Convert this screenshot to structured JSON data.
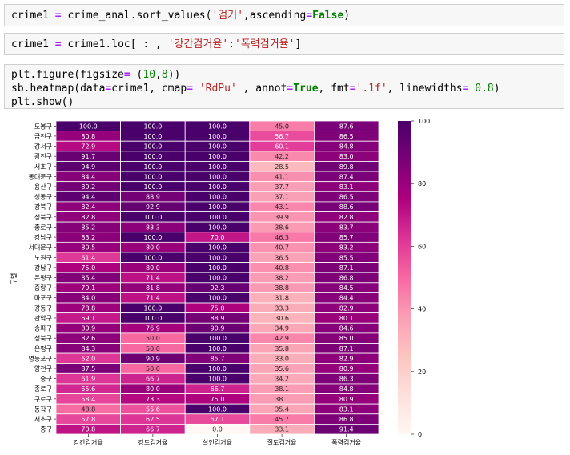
{
  "cells": [
    {
      "lines": [
        [
          [
            "crime1 ",
            ""
          ],
          [
            "=",
            ""
          ],
          [
            " crime_anal.sort_values(",
            ""
          ],
          [
            "'검거'",
            "str"
          ],
          [
            ",ascending",
            ""
          ],
          [
            "=",
            ""
          ],
          [
            "False",
            "kw"
          ],
          [
            ")",
            ""
          ]
        ]
      ]
    },
    {
      "lines": [
        [
          [
            "crime1 ",
            ""
          ],
          [
            "=",
            ""
          ],
          [
            " crime1.loc[ : , ",
            ""
          ],
          [
            "'강간검거율'",
            "str"
          ],
          [
            ":",
            ""
          ],
          [
            "'폭력검거율'",
            "str"
          ],
          [
            "]",
            ""
          ]
        ]
      ]
    },
    {
      "lines": [
        [
          [
            "plt.figure(figsize",
            ""
          ],
          [
            "=",
            ""
          ],
          [
            " (",
            ""
          ],
          [
            "10",
            "num"
          ],
          [
            ",",
            ""
          ],
          [
            "8",
            "num"
          ],
          [
            "))",
            ""
          ]
        ],
        [
          [
            "sb.heatmap(data",
            ""
          ],
          [
            "=",
            ""
          ],
          [
            "crime1, cmap",
            ""
          ],
          [
            "=",
            ""
          ],
          [
            " ",
            ""
          ],
          [
            "'RdPu'",
            "str"
          ],
          [
            " , annot",
            ""
          ],
          [
            "=",
            ""
          ],
          [
            "True",
            "kw"
          ],
          [
            ", fmt",
            ""
          ],
          [
            "=",
            ""
          ],
          [
            "'.1f'",
            "str"
          ],
          [
            ", linewidths",
            ""
          ],
          [
            "=",
            ""
          ],
          [
            " ",
            ""
          ],
          [
            "0.8",
            "num"
          ],
          [
            ")",
            ""
          ]
        ],
        [
          [
            "plt.show()",
            ""
          ]
        ]
      ]
    }
  ],
  "chart_data": {
    "type": "heatmap",
    "cmap": "RdPu",
    "ylabel": "구별",
    "xlabel": "",
    "columns": [
      "강간검거율",
      "강도검거율",
      "살인검거율",
      "절도검거율",
      "폭력검거율"
    ],
    "rows": [
      "도봉구",
      "금천구",
      "강서구",
      "광진구",
      "서초구",
      "동대문구",
      "용산구",
      "성동구",
      "강북구",
      "성북구",
      "종로구",
      "강남구",
      "서대문구",
      "노원구",
      "강남구",
      "은평구",
      "중랑구",
      "마포구",
      "강동구",
      "관악구",
      "송파구",
      "성북구",
      "은평구",
      "영등포구",
      "양천구",
      "중구",
      "종로구",
      "구로구",
      "동작구",
      "서초구",
      "중구"
    ],
    "values": [
      [
        100.0,
        100.0,
        100.0,
        45.0,
        87.6
      ],
      [
        80.8,
        100.0,
        100.0,
        56.7,
        86.5
      ],
      [
        72.9,
        100.0,
        100.0,
        60.1,
        84.8
      ],
      [
        91.7,
        100.0,
        100.0,
        42.2,
        83.0
      ],
      [
        94.9,
        100.0,
        100.0,
        28.5,
        89.8
      ],
      [
        84.4,
        100.0,
        100.0,
        41.1,
        87.4
      ],
      [
        89.2,
        100.0,
        100.0,
        37.7,
        83.1
      ],
      [
        94.4,
        88.9,
        100.0,
        37.1,
        86.5
      ],
      [
        82.4,
        92.9,
        100.0,
        43.1,
        88.6
      ],
      [
        82.8,
        100.0,
        100.0,
        39.9,
        82.8
      ],
      [
        85.2,
        83.3,
        100.0,
        38.6,
        83.7
      ],
      [
        83.2,
        100.0,
        70.0,
        46.3,
        85.7
      ],
      [
        80.5,
        80.0,
        100.0,
        40.7,
        83.2
      ],
      [
        61.4,
        100.0,
        100.0,
        36.5,
        85.5
      ],
      [
        75.0,
        80.0,
        100.0,
        40.8,
        87.1
      ],
      [
        85.4,
        71.4,
        100.0,
        38.2,
        86.8
      ],
      [
        79.1,
        81.8,
        92.3,
        38.8,
        84.5
      ],
      [
        84.0,
        71.4,
        100.0,
        31.8,
        84.4
      ],
      [
        78.8,
        100.0,
        75.0,
        33.3,
        82.9
      ],
      [
        69.1,
        100.0,
        88.9,
        30.6,
        80.1
      ],
      [
        80.9,
        76.9,
        90.9,
        34.9,
        84.6
      ],
      [
        82.6,
        50.0,
        100.0,
        42.9,
        85.0
      ],
      [
        84.3,
        50.0,
        100.0,
        35.8,
        87.1
      ],
      [
        62.0,
        90.9,
        85.7,
        33.0,
        82.9
      ],
      [
        87.5,
        50.0,
        100.0,
        35.6,
        80.9
      ],
      [
        61.9,
        66.7,
        100.0,
        34.2,
        86.3
      ],
      [
        65.6,
        80.0,
        66.7,
        38.1,
        84.8
      ],
      [
        58.4,
        73.3,
        75.0,
        38.1,
        80.9
      ],
      [
        48.8,
        55.6,
        100.0,
        35.4,
        83.1
      ],
      [
        57.8,
        62.5,
        57.1,
        45.7,
        86.8
      ],
      [
        70.8,
        66.7,
        0.0,
        33.1,
        91.4
      ]
    ],
    "vmin": 0,
    "vmax": 100,
    "colorbar_ticks": [
      0,
      20,
      40,
      60,
      80,
      100
    ]
  }
}
